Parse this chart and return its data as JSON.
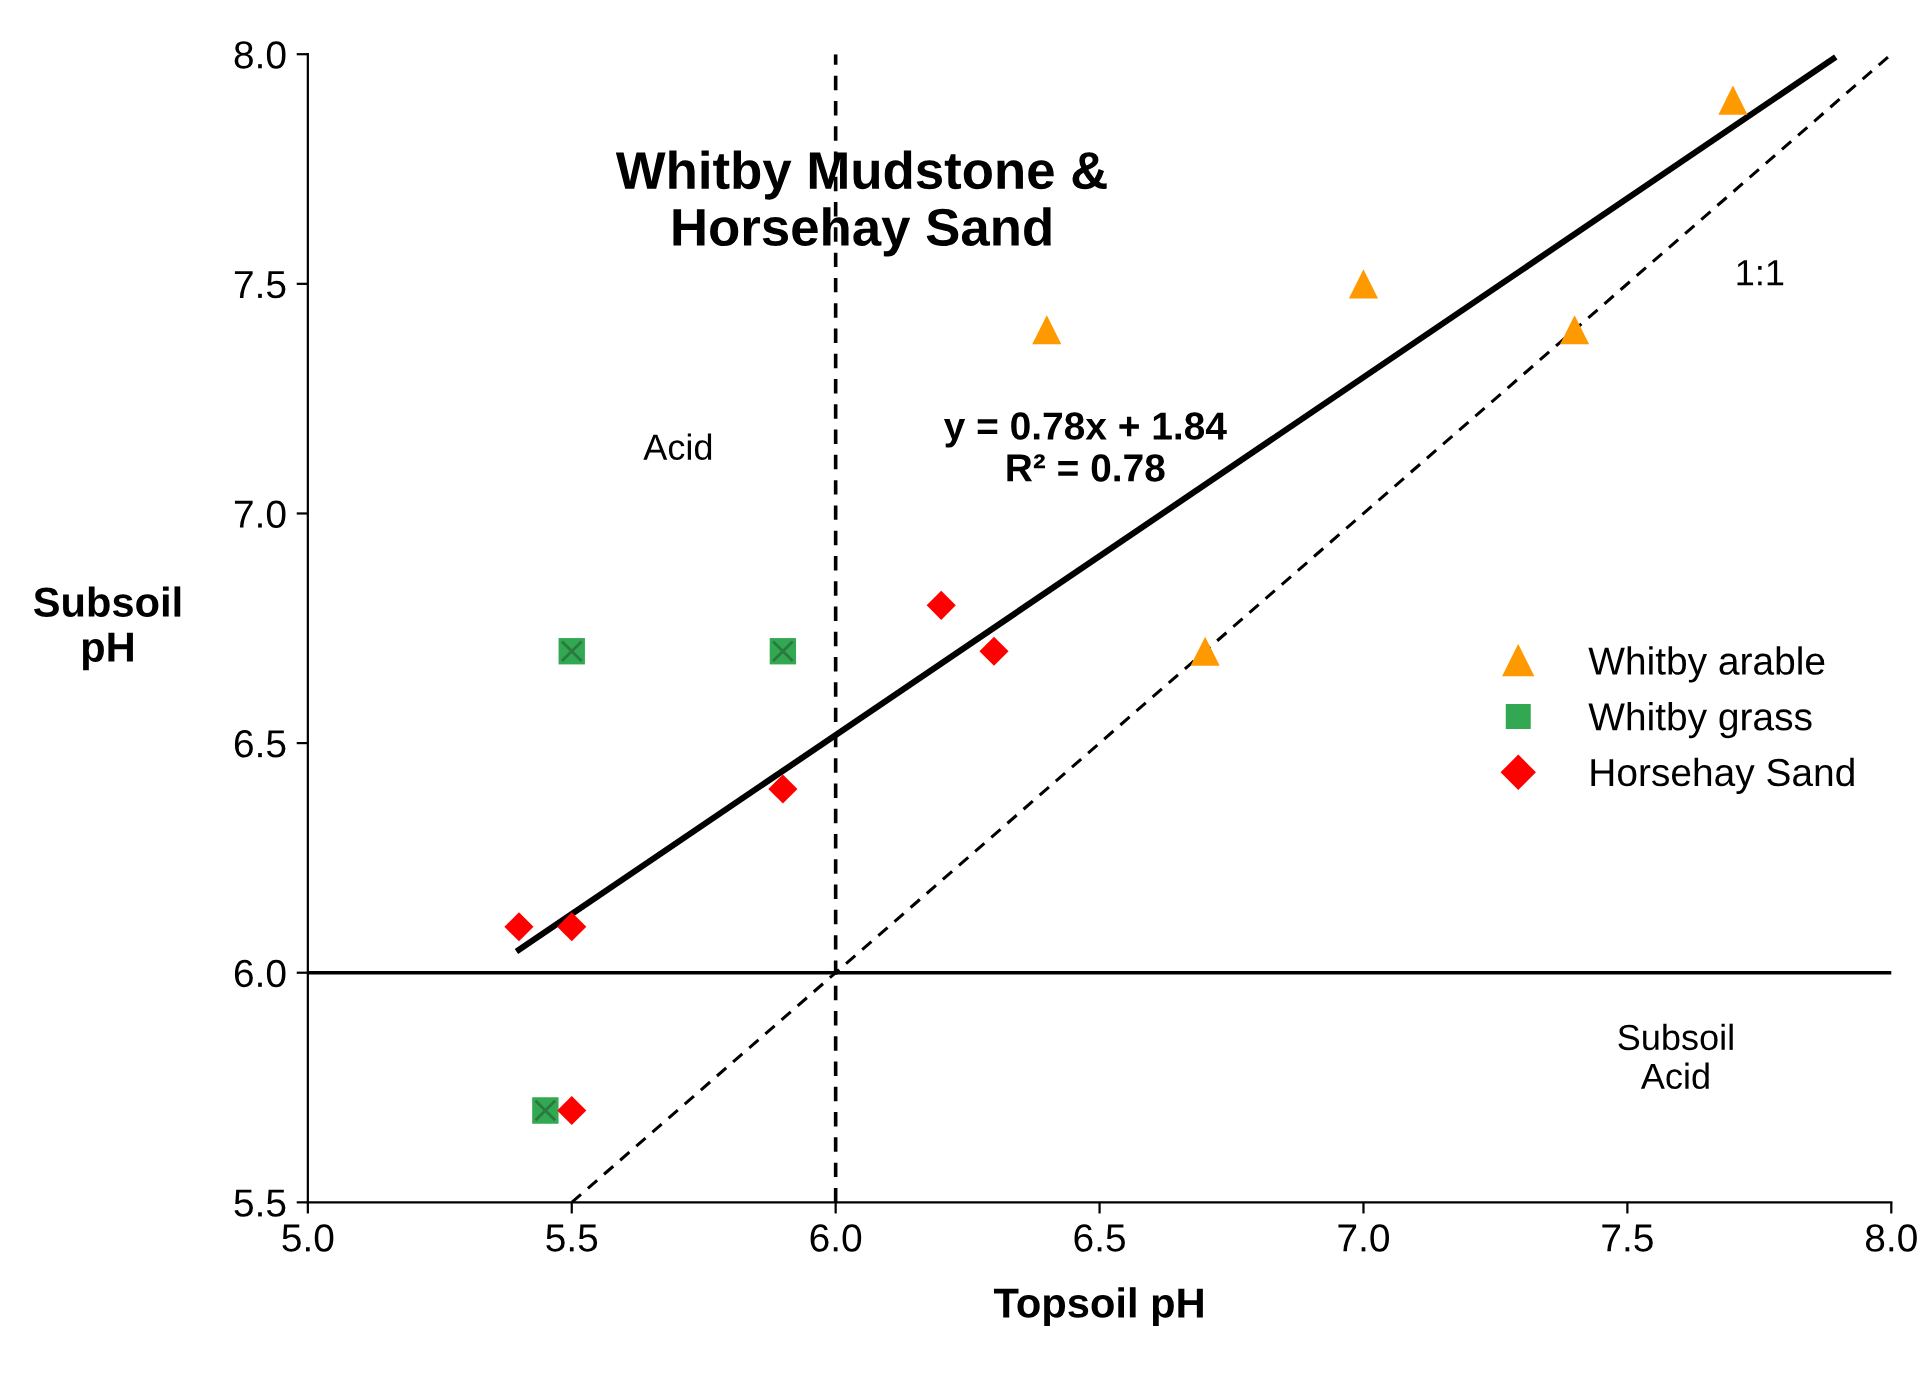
{
  "chart_data": {
    "type": "scatter",
    "title": "Whitby Mudstone &\nHorsehay Sand",
    "xlabel": "Topsoil pH",
    "ylabel": "Subsoil\npH",
    "xlim": [
      5.0,
      8.0
    ],
    "xticks": [
      {
        "value": 5.0,
        "label": "5.0"
      },
      {
        "value": 5.5,
        "label": "5.5"
      },
      {
        "value": 6.0,
        "label": "6.0"
      },
      {
        "value": 6.5,
        "label": "6.5"
      },
      {
        "value": 7.0,
        "label": "7.0"
      },
      {
        "value": 7.5,
        "label": "7.5"
      },
      {
        "value": 8.0,
        "label": "8.0"
      }
    ],
    "ylim": [
      5.5,
      8.0
    ],
    "yticks": [
      {
        "value": 5.5,
        "label": "5.5"
      },
      {
        "value": 6.0,
        "label": "6.0"
      },
      {
        "value": 6.5,
        "label": "6.5"
      },
      {
        "value": 7.0,
        "label": "7.0"
      },
      {
        "value": 7.5,
        "label": "7.5"
      },
      {
        "value": 8.0,
        "label": "8.0"
      }
    ],
    "grid": false,
    "legend": "right",
    "series": [
      {
        "name": "Whitby arable",
        "color": "#ff9900",
        "marker": "triangle",
        "x": [
          6.4,
          7.0,
          7.4,
          7.7,
          6.7
        ],
        "values": [
          7.4,
          7.5,
          7.4,
          7.9,
          6.7
        ]
      },
      {
        "name": "Whitby grass",
        "color": "#33a852",
        "marker": "square",
        "x": [
          5.5,
          5.9,
          5.45
        ],
        "values": [
          6.7,
          6.7,
          5.7
        ]
      },
      {
        "name": "Horsehay Sand",
        "color": "#ff0000",
        "marker": "diamond",
        "x": [
          5.4,
          5.5,
          5.9,
          6.2,
          6.3,
          5.5
        ],
        "values": [
          6.1,
          6.1,
          6.4,
          6.8,
          6.7,
          5.7
        ]
      },
      {
        "type": "line",
        "color": "#000000",
        "line_style": "solid",
        "x": [
          5.4,
          7.89
        ],
        "values": [
          6.05,
          7.99
        ]
      },
      {
        "type": "line",
        "color": "#000000",
        "line_style": "dashed",
        "x": [
          5.5,
          8.0
        ],
        "values": [
          5.5,
          8.0
        ]
      }
    ],
    "ref_lines": [
      {
        "axis": "y",
        "value": 6.0,
        "color": "#000000",
        "line_style": "solid"
      },
      {
        "axis": "x",
        "value": 6.0,
        "color": "#000000",
        "line_style": "dashed"
      }
    ],
    "annotations": [
      "y = 0.78x + 1.84\nR² = 0.78",
      "Acid",
      "Subsoil\nAcid",
      "1:1"
    ]
  }
}
